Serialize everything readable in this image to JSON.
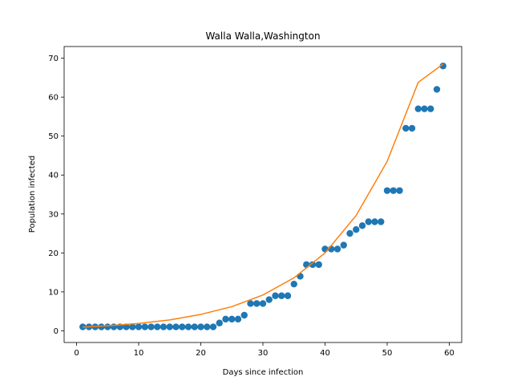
{
  "chart_data": {
    "type": "scatter",
    "title": "Walla Walla,Washington",
    "xlabel": "Days since infection",
    "ylabel": "Population infected",
    "xlim": [
      -2,
      62
    ],
    "ylim": [
      -3,
      73
    ],
    "xticks": [
      0,
      10,
      20,
      30,
      40,
      50,
      60
    ],
    "yticks": [
      0,
      10,
      20,
      30,
      40,
      50,
      60,
      70
    ],
    "grid": false,
    "series": [
      {
        "kind": "scatter",
        "color": "#1f77b4",
        "x": [
          1,
          2,
          3,
          4,
          5,
          6,
          7,
          8,
          9,
          10,
          11,
          12,
          13,
          14,
          15,
          16,
          17,
          18,
          19,
          20,
          21,
          22,
          23,
          24,
          25,
          26,
          27,
          28,
          29,
          30,
          31,
          32,
          33,
          34,
          35,
          36,
          37,
          38,
          39,
          40,
          41,
          42,
          43,
          44,
          45,
          46,
          47,
          48,
          49,
          50,
          51,
          52,
          53,
          54,
          55,
          56,
          57,
          58,
          59
        ],
        "y": [
          1,
          1,
          1,
          1,
          1,
          1,
          1,
          1,
          1,
          1,
          1,
          1,
          1,
          1,
          1,
          1,
          1,
          1,
          1,
          1,
          1,
          1,
          2,
          3,
          3,
          3,
          4,
          7,
          7,
          7,
          8,
          9,
          9,
          9,
          12,
          14,
          17,
          17,
          17,
          21,
          21,
          21,
          22,
          25,
          26,
          27,
          28,
          28,
          28,
          36,
          36,
          36,
          52,
          52,
          57,
          57,
          57,
          62,
          68
        ]
      },
      {
        "kind": "line",
        "color": "#ff7f0e",
        "x": [
          1,
          5,
          10,
          15,
          20,
          25,
          30,
          35,
          40,
          45,
          50,
          55,
          59
        ],
        "y": [
          0.95,
          1.3,
          1.9,
          2.8,
          4.2,
          6.2,
          9.2,
          13.6,
          20.0,
          29.6,
          43.5,
          63.8,
          68.5
        ]
      }
    ]
  }
}
